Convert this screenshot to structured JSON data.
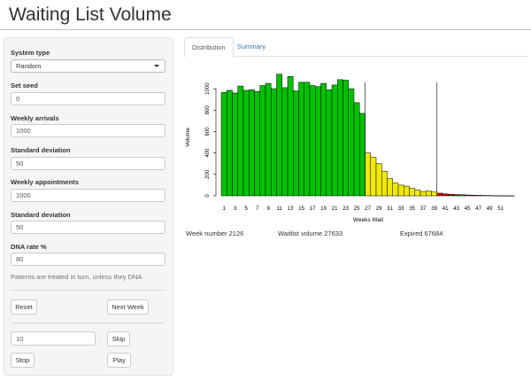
{
  "app": {
    "title": "Waiting List Volume"
  },
  "sidebar": {
    "system_type": {
      "label": "System type",
      "value": "Random"
    },
    "set_seed": {
      "label": "Set seed",
      "value": "0"
    },
    "weekly_arrivals": {
      "label": "Weekly arrivals",
      "value": "1000"
    },
    "arrivals_sd": {
      "label": "Standard deviation",
      "value": "50"
    },
    "weekly_appointments": {
      "label": "Weekly appointments",
      "value": "1000"
    },
    "appointments_sd": {
      "label": "Standard deviation",
      "value": "50"
    },
    "dna_rate": {
      "label": "DNA rate %",
      "value": "80"
    },
    "help_text": "Patients are treated in turn, unless they DNA",
    "reset_label": "Reset",
    "next_week_label": "Next Week",
    "skip_count": "10",
    "skip_label": "Skip",
    "stop_label": "Stop",
    "play_label": "Play"
  },
  "tabs": [
    {
      "label": "Distribution",
      "active": true
    },
    {
      "label": "Summary",
      "active": false
    }
  ],
  "status": {
    "week_number": "Week number 2126",
    "waitlist_volume": "Waitlist volume 27633",
    "expired": "Expired 67684"
  },
  "chart_data": {
    "type": "bar",
    "xlabel": "Weeks Wait",
    "ylabel": "Volume",
    "ylim": [
      0,
      1150
    ],
    "yticks": [
      0,
      200,
      400,
      600,
      800,
      1000
    ],
    "xtick_labels": [
      "1",
      "3",
      "5",
      "7",
      "9",
      "11",
      "13",
      "15",
      "17",
      "19",
      "21",
      "23",
      "25",
      "27",
      "29",
      "31",
      "33",
      "35",
      "37",
      "39",
      "41",
      "43",
      "45",
      "47",
      "49",
      "51"
    ],
    "weeks": [
      1,
      2,
      3,
      4,
      5,
      6,
      7,
      8,
      9,
      10,
      11,
      12,
      13,
      14,
      15,
      16,
      17,
      18,
      19,
      20,
      21,
      22,
      23,
      24,
      25,
      26,
      27,
      28,
      29,
      30,
      31,
      32,
      33,
      34,
      35,
      36,
      37,
      38,
      39,
      40,
      41,
      42,
      43,
      44,
      45,
      46,
      47,
      48,
      49,
      50,
      51,
      52,
      53
    ],
    "values": [
      965,
      985,
      960,
      1025,
      985,
      990,
      975,
      1030,
      1050,
      1000,
      1135,
      1010,
      1115,
      980,
      1060,
      1060,
      1030,
      1020,
      1050,
      990,
      1035,
      1085,
      1080,
      1000,
      870,
      770,
      400,
      360,
      300,
      230,
      160,
      120,
      100,
      90,
      70,
      55,
      40,
      45,
      35,
      25,
      18,
      15,
      12,
      10,
      8,
      6,
      5,
      4,
      3,
      2,
      1,
      1,
      1
    ],
    "bar_colors": {
      "green": "#00c000",
      "yellow": "#f0e800",
      "red": "#d40000"
    },
    "vlines_after_week": [
      26,
      39
    ]
  }
}
